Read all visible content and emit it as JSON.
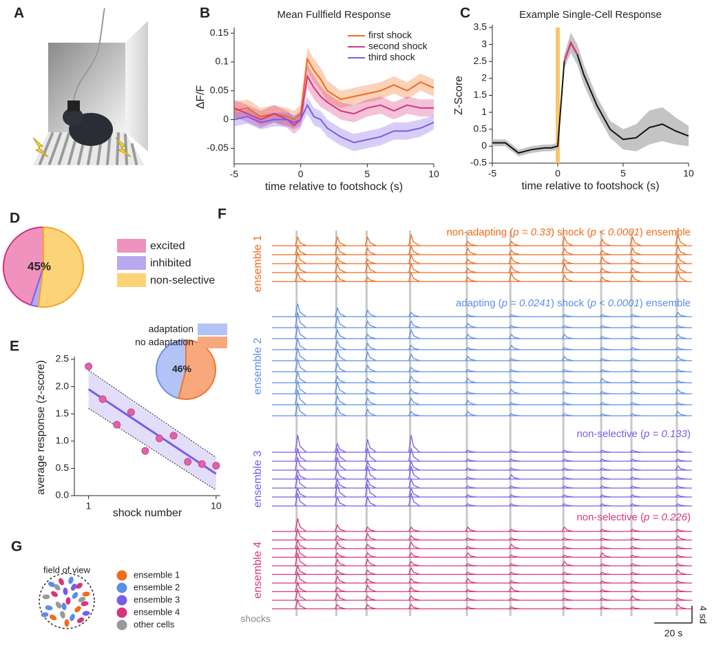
{
  "panel_labels": [
    "A",
    "B",
    "C",
    "D",
    "E",
    "F",
    "G"
  ],
  "chart_data": [
    {
      "type": "line",
      "title": "Mean Fullfield Response",
      "x_label": "time relative to footshock (s)",
      "y_label": "ΔF/F",
      "x": [
        -5,
        -4,
        -3,
        -2,
        -1,
        -0.5,
        0,
        0.5,
        1,
        1.5,
        2,
        3,
        4,
        5,
        6,
        7,
        8,
        9,
        10
      ],
      "xlim": [
        -5,
        10
      ],
      "xticks": [
        -5,
        0,
        5,
        10
      ],
      "ylim": [
        -0.077,
        0.155
      ],
      "yticks": [
        -0.05,
        0,
        0.05,
        0.1,
        0.15
      ],
      "legend": "upper right",
      "series": [
        {
          "name": "first shock",
          "color": "#f26a1b",
          "values": [
            0.015,
            0.02,
            0.005,
            0.01,
            0.005,
            0.0,
            0.01,
            0.105,
            0.085,
            0.07,
            0.05,
            0.035,
            0.04,
            0.045,
            0.05,
            0.06,
            0.05,
            0.065,
            0.055
          ],
          "error": [
            0.015,
            0.015,
            0.015,
            0.015,
            0.015,
            0.015,
            0.015,
            0.02,
            0.02,
            0.02,
            0.018,
            0.015,
            0.015,
            0.015,
            0.015,
            0.015,
            0.015,
            0.015,
            0.015
          ]
        },
        {
          "name": "second shock",
          "color": "#d6357d",
          "values": [
            0.02,
            0.01,
            0.0,
            0.01,
            0.0,
            -0.01,
            0.0,
            0.075,
            0.055,
            0.04,
            0.03,
            0.015,
            0.01,
            0.02,
            0.025,
            0.015,
            0.025,
            0.02,
            0.02
          ],
          "error": [
            0.015,
            0.015,
            0.015,
            0.015,
            0.015,
            0.015,
            0.015,
            0.02,
            0.02,
            0.018,
            0.015,
            0.015,
            0.015,
            0.015,
            0.015,
            0.015,
            0.015,
            0.015,
            0.015
          ]
        },
        {
          "name": "third shock",
          "color": "#7a5ce8",
          "values": [
            0.0,
            0.005,
            -0.005,
            0.0,
            0.0,
            -0.005,
            0.0,
            0.025,
            0.005,
            0.0,
            -0.015,
            -0.03,
            -0.04,
            -0.035,
            -0.03,
            -0.02,
            -0.02,
            -0.015,
            -0.005
          ],
          "error": [
            0.012,
            0.012,
            0.012,
            0.012,
            0.012,
            0.012,
            0.012,
            0.015,
            0.015,
            0.015,
            0.015,
            0.015,
            0.015,
            0.015,
            0.015,
            0.015,
            0.015,
            0.015,
            0.012
          ]
        }
      ]
    },
    {
      "type": "line",
      "title": "Example Single-Cell Response",
      "x_label": "time relative to footshock (s)",
      "y_label": "Z-Score",
      "x": [
        -5,
        -4,
        -3,
        -2,
        -1,
        -0.5,
        0,
        0.5,
        1,
        1.5,
        2,
        3,
        4,
        5,
        6,
        7,
        8,
        9,
        10
      ],
      "xlim": [
        -5,
        10
      ],
      "xticks": [
        -5,
        0,
        5,
        10
      ],
      "ylim": [
        -0.5,
        3.5
      ],
      "yticks": [
        -0.5,
        0,
        0.5,
        1,
        1.5,
        2,
        2.5,
        3,
        3.5
      ],
      "shock_marker": {
        "x": 0,
        "color": "#fbc56a"
      },
      "highlight": {
        "xlim": [
          0.5,
          1.5
        ],
        "color": "#d6357d"
      },
      "series": [
        {
          "color": "#111111",
          "band_color": "#c4c4c4",
          "values": [
            0.1,
            0.1,
            -0.2,
            -0.1,
            -0.05,
            -0.05,
            0.0,
            2.5,
            3.05,
            2.7,
            2.1,
            1.2,
            0.5,
            0.2,
            0.25,
            0.55,
            0.65,
            0.45,
            0.3
          ],
          "error": [
            0.1,
            0.1,
            0.1,
            0.1,
            0.1,
            0.1,
            0.1,
            0.2,
            0.3,
            0.3,
            0.3,
            0.25,
            0.25,
            0.3,
            0.4,
            0.5,
            0.5,
            0.4,
            0.3
          ]
        }
      ]
    },
    {
      "type": "pie",
      "categories": [
        "excited",
        "inhibited",
        "non-selective"
      ],
      "values": [
        45,
        3,
        52
      ],
      "value_labels": [
        "45%",
        null,
        null
      ],
      "colors": [
        "#ef92be",
        "#b7a8f0",
        "#fdd37a"
      ],
      "edge_colors": [
        "#d42f7a",
        "#7b61e8",
        "#f5a623"
      ]
    },
    {
      "type": "scatter",
      "x_label": "shock number",
      "y_label": "average response (z-score)",
      "x": [
        1,
        2,
        3,
        4,
        5,
        6,
        7,
        8,
        9,
        10
      ],
      "values": [
        2.37,
        1.77,
        1.3,
        1.53,
        0.82,
        1.05,
        1.1,
        0.62,
        0.58,
        0.55
      ],
      "color": "#e062a8",
      "xlim": [
        0,
        10.3
      ],
      "xticks": [
        1,
        10
      ],
      "ylim": [
        0,
        2.5
      ],
      "yticks": [
        {
          "value": 0,
          "label": "0.0"
        },
        0.5,
        {
          "value": 1,
          "label": "1.0"
        },
        1.5,
        {
          "value": 2,
          "label": "2.0"
        },
        2.5
      ],
      "fit": {
        "x": [
          1,
          10
        ],
        "values": [
          1.95,
          0.4
        ],
        "upper": [
          2.3,
          0.7
        ],
        "lower": [
          1.6,
          0.1
        ],
        "color": "#7a5ce8",
        "band_color": "#cfc6f4"
      }
    },
    {
      "type": "pie",
      "categories": [
        "adaptation",
        "no adaptation"
      ],
      "values": [
        46,
        54
      ],
      "value_labels": [
        "46%",
        null
      ],
      "colors": [
        "#b2c3f5",
        "#f7a87c"
      ],
      "edge_colors": [
        "#6e8fe6",
        "#f07530"
      ]
    },
    {
      "type": "traces",
      "xlim": [
        -13,
        209
      ],
      "shock_times": [
        0,
        21,
        37,
        60,
        90,
        113,
        141,
        161,
        177,
        201
      ],
      "shocks_label": "shocks",
      "scale_x": {
        "value": 20,
        "label": "20 s"
      },
      "scale_y": {
        "value": 4,
        "label": "4 sd"
      },
      "ensembles": [
        {
          "name": "ensemble 1",
          "color": "#f26a1b",
          "annotation": [
            "non-adapting (",
            "p = 0.33",
            ") shock (",
            "p < 0.0001",
            ") ensemble"
          ],
          "traces": [
            [
              2,
              2,
              2,
              2.5,
              1,
              1,
              2,
              1.5,
              2,
              2.5
            ],
            [
              2,
              2,
              1.5,
              2,
              1.5,
              1,
              1.5,
              1,
              1.5,
              2
            ],
            [
              2.5,
              1.5,
              1,
              2,
              1,
              1.5,
              1,
              1.5,
              1,
              2
            ],
            [
              2,
              2,
              2,
              2,
              1,
              1.5,
              2,
              1,
              1,
              2
            ],
            [
              2,
              1.5,
              1,
              2,
              1,
              2,
              1.5,
              1,
              1.5,
              2.5
            ]
          ]
        },
        {
          "name": "ensemble 2",
          "color": "#5b8ee8",
          "annotation": [
            "adapting (",
            "p = 0.0241",
            ") shock (",
            "p < 0.0001",
            ") ensemble"
          ],
          "traces": [
            [
              3,
              2,
              1.5,
              1,
              0.5,
              0.5,
              0.5,
              0.5,
              0.5,
              1
            ],
            [
              3.5,
              2.5,
              1.5,
              1.5,
              1,
              0.5,
              0.5,
              0.5,
              0.5,
              0.5
            ],
            [
              3,
              2,
              1,
              2,
              1,
              1,
              1,
              0.5,
              0.5,
              1
            ],
            [
              2.5,
              2,
              1.5,
              1,
              0.5,
              1,
              0.5,
              0.5,
              0.5,
              0.5
            ],
            [
              3,
              2.5,
              2,
              1.5,
              1,
              0.5,
              1,
              0.5,
              0.5,
              1
            ],
            [
              3,
              2,
              1.5,
              1,
              0.5,
              0.5,
              0.5,
              0.5,
              0.5,
              0.5
            ],
            [
              2.5,
              1.5,
              1,
              1.5,
              1,
              0.5,
              0.5,
              1,
              0.5,
              0.5
            ],
            [
              3,
              2.5,
              1,
              1,
              0.5,
              1,
              0.5,
              0.5,
              0.5,
              1
            ],
            [
              3.5,
              2,
              1.5,
              1.5,
              1,
              0.5,
              0.5,
              0.5,
              0.5,
              0.5
            ],
            [
              3,
              2,
              1.5,
              1,
              1,
              0.5,
              0.5,
              0.5,
              0.5,
              1
            ]
          ]
        },
        {
          "name": "ensemble 3",
          "color": "#7a5ce8",
          "annotation": [
            "non-selective (",
            "p = 0.133",
            ")"
          ],
          "traces": [
            [
              4,
              2,
              3,
              4,
              0.5,
              0.5,
              0.5,
              0.5,
              0.5,
              0.5
            ],
            [
              3,
              3,
              3,
              3,
              0.5,
              0.5,
              0.5,
              0.5,
              0.5,
              0.5
            ],
            [
              3,
              3,
              2,
              2,
              0.5,
              0.5,
              0.5,
              0.5,
              0.5,
              1
            ],
            [
              2,
              2,
              3,
              3,
              0.5,
              1,
              0.5,
              0.5,
              0.5,
              0.5
            ],
            [
              3,
              2,
              2,
              2,
              0.5,
              0.5,
              0.5,
              0.5,
              0.5,
              0.5
            ],
            [
              2,
              3,
              3,
              2,
              0.5,
              0.5,
              0.5,
              0.5,
              0.5,
              0.5
            ],
            [
              3,
              2,
              2,
              3,
              0.5,
              0.5,
              0.5,
              0.5,
              0.5,
              0.5
            ]
          ]
        },
        {
          "name": "ensemble 4",
          "color": "#d6357d",
          "annotation": [
            "non-selective (",
            "p = 0.226",
            ")"
          ],
          "traces": [
            [
              3,
              1.5,
              1,
              1,
              1,
              0.5,
              1,
              0.5,
              0.5,
              0.5
            ],
            [
              2.5,
              1,
              1.5,
              1,
              0.5,
              0.5,
              0.5,
              0.5,
              0.5,
              1
            ],
            [
              2,
              1.5,
              1,
              1.5,
              0.5,
              1,
              0.5,
              0.5,
              0.5,
              0.5
            ],
            [
              2.5,
              1,
              1,
              1,
              1,
              0.5,
              0.5,
              1,
              0.5,
              0.5
            ],
            [
              3,
              1.5,
              1.5,
              1,
              0.5,
              0.5,
              1,
              0.5,
              0.5,
              0.5
            ],
            [
              2,
              1,
              1,
              1.5,
              0.5,
              0.5,
              0.5,
              0.5,
              0.5,
              1
            ],
            [
              2.5,
              1.5,
              1,
              1,
              1,
              0.5,
              0.5,
              0.5,
              0.5,
              0.5
            ],
            [
              2,
              1,
              1.5,
              1,
              0.5,
              1,
              0.5,
              0.5,
              0.5,
              0.5
            ],
            [
              2.5,
              1.5,
              1,
              1,
              0.5,
              0.5,
              0.5,
              0.5,
              1,
              0.5
            ],
            [
              2,
              1,
              1,
              1,
              0.5,
              0.5,
              0.5,
              0.5,
              0.5,
              1
            ]
          ]
        }
      ]
    },
    {
      "type": "cell-map",
      "title": "field of view",
      "categories": [
        "ensemble 1",
        "ensemble 2",
        "ensemble 3",
        "ensemble 4",
        "other cells"
      ],
      "colors": [
        "#f26a1b",
        "#5b8ee8",
        "#7a5ce8",
        "#d6357d",
        "#999999"
      ]
    }
  ]
}
